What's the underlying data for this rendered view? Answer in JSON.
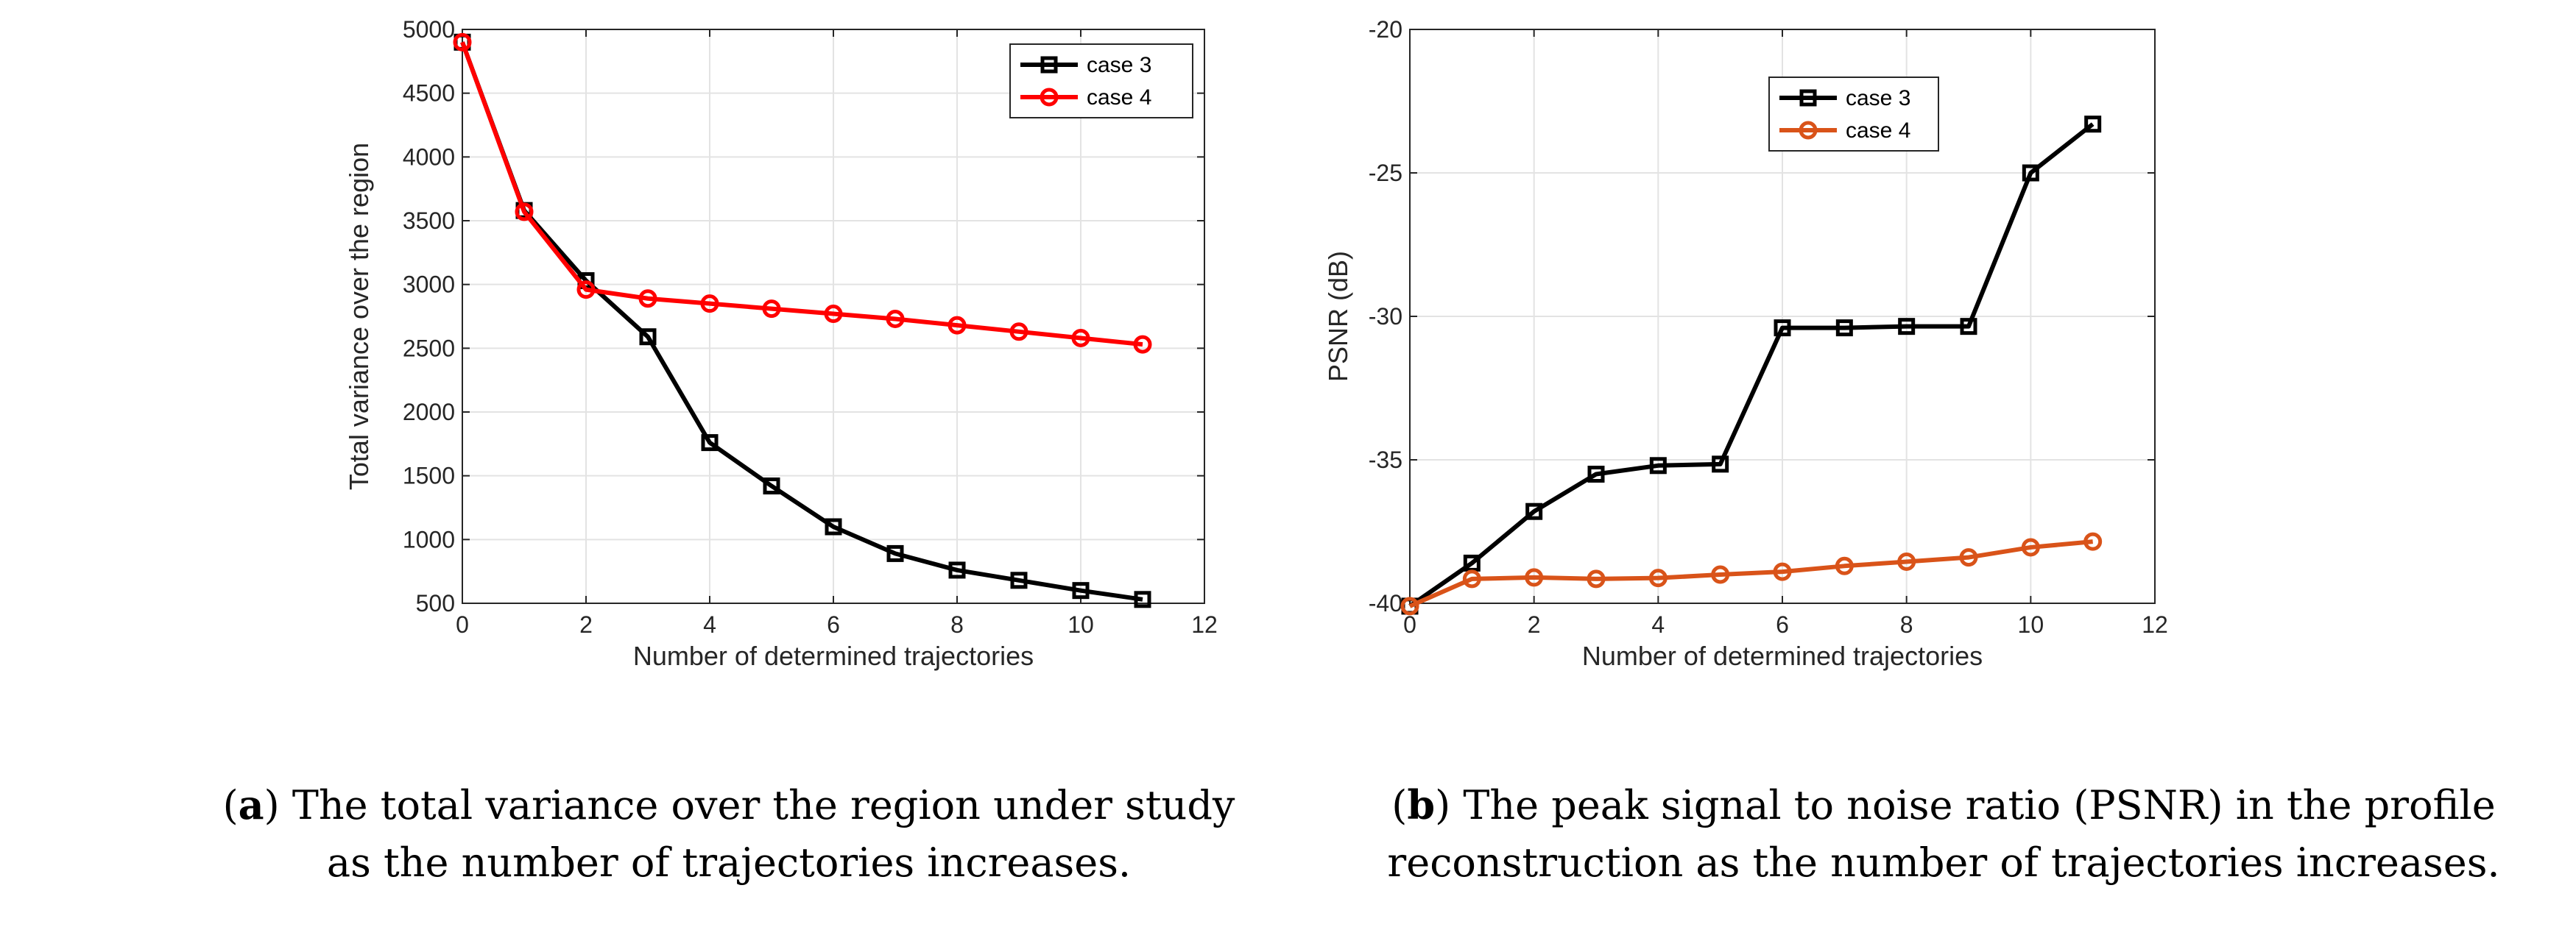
{
  "chart_data": [
    {
      "type": "line",
      "panel": "a",
      "xlabel": "Number of determined trajectories",
      "ylabel": "Total variance over the region",
      "xlim": [
        0,
        12
      ],
      "ylim": [
        500,
        5000
      ],
      "xticks": [
        0,
        2,
        4,
        6,
        8,
        10,
        12
      ],
      "yticks": [
        500,
        1000,
        1500,
        2000,
        2500,
        3000,
        3500,
        4000,
        4500,
        5000
      ],
      "grid": true,
      "legend_position": "top-right",
      "series": [
        {
          "name": "case 3",
          "color": "#000000",
          "marker": "square",
          "x": [
            0,
            1,
            2,
            3,
            4,
            5,
            6,
            7,
            8,
            9,
            10,
            11
          ],
          "values": [
            4900,
            3580,
            3030,
            2590,
            1760,
            1420,
            1100,
            890,
            760,
            680,
            600,
            530
          ]
        },
        {
          "name": "case 4",
          "color": "#ff0000",
          "marker": "circle",
          "x": [
            0,
            1,
            2,
            3,
            4,
            5,
            6,
            7,
            8,
            9,
            10,
            11
          ],
          "values": [
            4900,
            3570,
            2960,
            2890,
            2850,
            2810,
            2770,
            2730,
            2680,
            2630,
            2580,
            2530
          ]
        }
      ]
    },
    {
      "type": "line",
      "panel": "b",
      "xlabel": "Number of determined trajectories",
      "ylabel": "PSNR (dB)",
      "xlim": [
        0,
        12
      ],
      "ylim": [
        -40,
        -20
      ],
      "xticks": [
        0,
        2,
        4,
        6,
        8,
        10,
        12
      ],
      "yticks": [
        -40,
        -35,
        -30,
        -25,
        -20
      ],
      "grid": true,
      "legend_position": "top-left",
      "series": [
        {
          "name": "case 3",
          "color": "#000000",
          "marker": "square",
          "x": [
            0,
            1,
            2,
            3,
            4,
            5,
            6,
            7,
            8,
            9,
            10,
            11
          ],
          "values": [
            -40.1,
            -38.6,
            -36.8,
            -35.5,
            -35.2,
            -35.15,
            -30.4,
            -30.4,
            -30.35,
            -30.35,
            -25.0,
            -23.3
          ]
        },
        {
          "name": "case 4",
          "color": "#d95319",
          "marker": "circle",
          "x": [
            0,
            1,
            2,
            3,
            4,
            5,
            6,
            7,
            8,
            9,
            10,
            11
          ],
          "values": [
            -40.1,
            -39.15,
            -39.1,
            -39.15,
            -39.12,
            -39.0,
            -38.9,
            -38.7,
            -38.55,
            -38.4,
            -38.05,
            -37.85
          ]
        }
      ]
    }
  ],
  "captions": {
    "a": {
      "label": "a",
      "text": "The total variance over the region under study as the number of trajectories increases."
    },
    "b": {
      "label": "b",
      "text": "The peak signal to noise ratio (PSNR) in the profile reconstruction as the number of trajectories increases."
    }
  }
}
